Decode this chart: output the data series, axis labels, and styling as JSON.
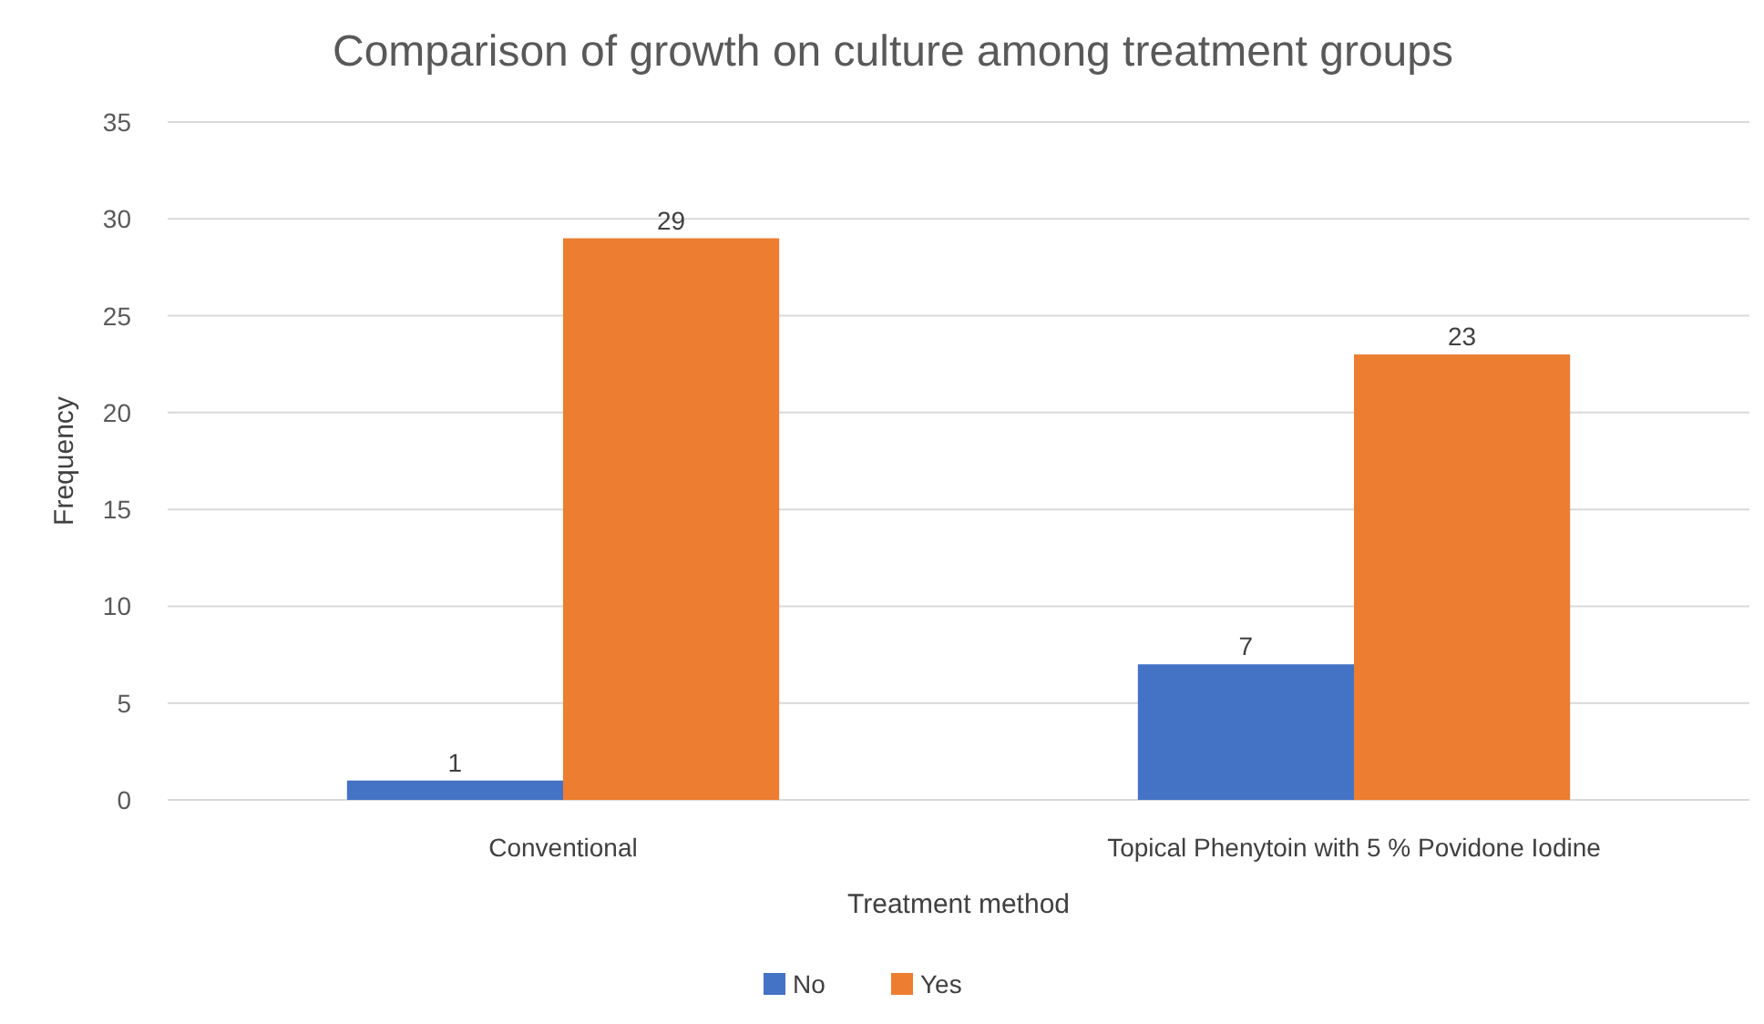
{
  "chart_data": {
    "type": "bar",
    "title": "Comparison of growth on culture among treatment groups",
    "xlabel": "Treatment method",
    "ylabel": "Frequency",
    "categories": [
      "Conventional",
      "Topical Phenytoin with 5 % Povidone Iodine"
    ],
    "series": [
      {
        "name": "No",
        "color": "#4472c4",
        "values": [
          1,
          7
        ]
      },
      {
        "name": "Yes",
        "color": "#ed7d31",
        "values": [
          29,
          23
        ]
      }
    ],
    "ylim": [
      0,
      35
    ],
    "yticks": [
      0,
      5,
      10,
      15,
      20,
      25,
      30,
      35
    ],
    "grid": "y",
    "legend": "bottom",
    "data_labels": true
  }
}
